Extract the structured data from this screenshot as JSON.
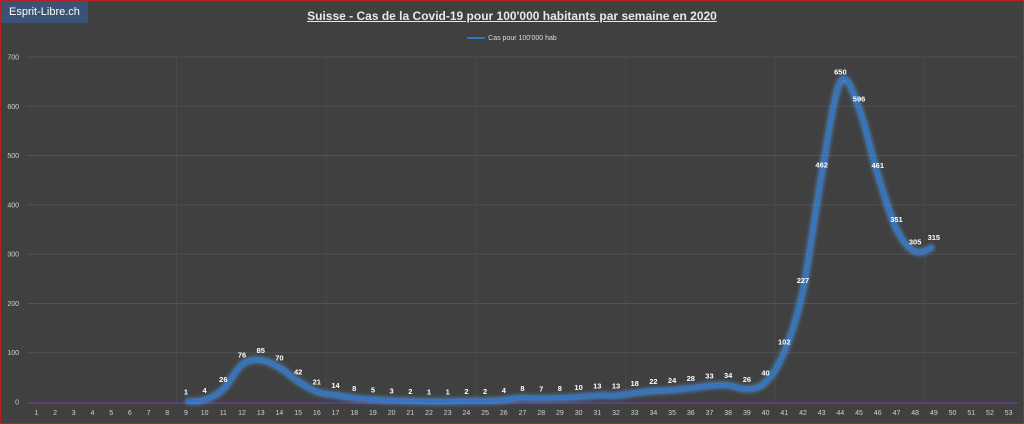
{
  "badge": "Esprit-Libre.ch",
  "colors": {
    "background": "#404040",
    "line": "#2e75c8",
    "glow": "#4da3ff",
    "border": "#b82020",
    "badge": "#3a5276",
    "xaxis": "#7a3fb0"
  },
  "chart_data": {
    "type": "line",
    "title": "Suisse - Cas de la Covid-19 pour 100'000  habitants par semaine en 2020",
    "xlabel": "",
    "ylabel": "",
    "ylim": [
      0,
      700
    ],
    "yticks": [
      0,
      100,
      200,
      300,
      400,
      500,
      600,
      700
    ],
    "grid": true,
    "legend_position": "top",
    "categories": [
      "1",
      "2",
      "3",
      "4",
      "5",
      "6",
      "7",
      "8",
      "9",
      "10",
      "11",
      "12",
      "13",
      "14",
      "15",
      "16",
      "17",
      "18",
      "19",
      "20",
      "21",
      "22",
      "23",
      "24",
      "25",
      "26",
      "27",
      "28",
      "29",
      "30",
      "31",
      "32",
      "33",
      "34",
      "35",
      "36",
      "37",
      "38",
      "39",
      "40",
      "41",
      "42",
      "43",
      "44",
      "45",
      "46",
      "47",
      "48",
      "49",
      "50",
      "51",
      "52",
      "53"
    ],
    "series": [
      {
        "name": "Cas pour 100'000 hab",
        "x": [
          9,
          10,
          11,
          12,
          13,
          14,
          15,
          16,
          17,
          18,
          19,
          20,
          21,
          22,
          23,
          24,
          25,
          26,
          27,
          28,
          29,
          30,
          31,
          32,
          33,
          34,
          35,
          36,
          37,
          38,
          39,
          40,
          41,
          42,
          43,
          44,
          45,
          46,
          47,
          48,
          49
        ],
        "values": [
          1,
          4,
          26,
          76,
          85,
          70,
          42,
          21,
          14,
          8,
          5,
          3,
          2,
          1,
          1,
          2,
          2,
          4,
          8,
          7,
          8,
          10,
          13,
          13,
          18,
          22,
          24,
          28,
          33,
          34,
          26,
          40,
          102,
          227,
          462,
          650,
          596,
          461,
          351,
          305,
          315
        ]
      }
    ]
  }
}
